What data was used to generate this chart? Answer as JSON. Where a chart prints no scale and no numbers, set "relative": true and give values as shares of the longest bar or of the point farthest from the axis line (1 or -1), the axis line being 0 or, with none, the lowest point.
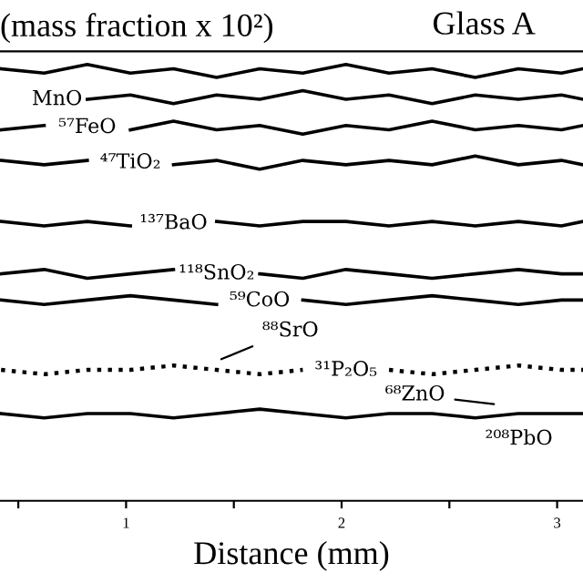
{
  "chart_data": {
    "type": "line",
    "relative": true,
    "title": "(mass fraction x 10²)",
    "xlabel": "Distance (mm)",
    "x": [
      0.42,
      0.62,
      0.82,
      1.02,
      1.22,
      1.42,
      1.62,
      1.82,
      2.02,
      2.22,
      2.42,
      2.62,
      2.82,
      3.02,
      3.12
    ],
    "xlim": [
      0.415,
      3.12
    ],
    "xticks": [
      {
        "value": 0.5,
        "label": null
      },
      1,
      {
        "value": 1.5,
        "label": null
      },
      2,
      {
        "value": 2.5,
        "label": null
      },
      3
    ],
    "tick_labels": "x",
    "grid": false,
    "legend": false,
    "marker": "none",
    "series": [
      {
        "color": "#000000",
        "values": [
          0.99,
          0.98,
          1.0,
          0.98,
          0.99,
          0.97,
          0.99,
          0.98,
          1.0,
          0.98,
          0.99,
          0.97,
          0.99,
          0.98,
          0.99
        ]
      },
      {
        "name": "MnO",
        "color": "#000000",
        "values": [
          null,
          null,
          0.92,
          0.93,
          0.91,
          0.93,
          0.92,
          0.94,
          0.92,
          0.93,
          0.91,
          0.93,
          0.92,
          0.93,
          0.92
        ]
      },
      {
        "name": "⁵⁷FeO",
        "color": "#000000",
        "values": [
          0.85,
          0.86,
          null,
          0.85,
          0.87,
          0.85,
          0.86,
          0.84,
          0.86,
          0.85,
          0.87,
          0.85,
          0.86,
          0.85,
          0.86
        ]
      },
      {
        "name": "⁴⁷TiO₂",
        "color": "#000000",
        "values": [
          0.78,
          0.77,
          0.78,
          null,
          0.77,
          0.78,
          0.76,
          0.78,
          0.77,
          0.78,
          0.77,
          0.79,
          0.77,
          0.78,
          0.77
        ]
      },
      {
        "name": "¹³⁷BaO",
        "color": "#000000",
        "values": [
          0.64,
          0.63,
          0.64,
          0.63,
          null,
          0.64,
          0.63,
          0.64,
          0.64,
          0.63,
          0.64,
          0.63,
          0.64,
          0.63,
          0.64
        ]
      },
      {
        "name": "¹¹⁸SnO₂",
        "color": "#000000",
        "values": [
          0.52,
          0.53,
          0.51,
          0.52,
          0.53,
          null,
          0.52,
          0.51,
          0.53,
          0.52,
          0.51,
          0.52,
          0.53,
          0.52,
          0.52
        ]
      },
      {
        "name": "⁵⁹CoO",
        "color": "#000000",
        "values": [
          0.46,
          0.45,
          0.46,
          0.47,
          0.46,
          0.45,
          null,
          0.46,
          0.45,
          0.46,
          0.47,
          0.46,
          0.45,
          0.46,
          0.46
        ]
      },
      {
        "name": "³¹P₂O₅",
        "color": "#000000",
        "line_style": "dotted",
        "values": [
          0.3,
          0.29,
          0.3,
          0.3,
          0.31,
          0.3,
          0.29,
          0.3,
          null,
          0.3,
          0.29,
          0.3,
          0.31,
          0.3,
          0.3
        ]
      },
      {
        "color": "#000000",
        "values": [
          0.2,
          0.19,
          0.2,
          0.2,
          0.19,
          0.2,
          0.21,
          0.2,
          0.19,
          0.2,
          0.2,
          0.19,
          0.2,
          0.2,
          0.2
        ]
      }
    ],
    "annotations": [
      "Glass A",
      {
        "text": "⁸⁸SrO",
        "x": 1.42,
        "y": 0.32
      },
      {
        "text": "⁶⁸ZnO",
        "x": 2.73,
        "y": 0.22
      },
      "²⁰⁸PbO"
    ]
  }
}
